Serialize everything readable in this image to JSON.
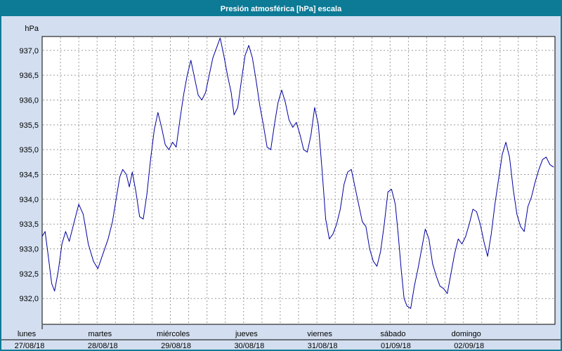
{
  "window": {
    "title": "Presión atmosférica [hPa] escala"
  },
  "colors": {
    "titlebar": "#0d7a96",
    "window_border": "#0d7a96",
    "background": "#d3dff0",
    "plot_background": "#ffffff",
    "plot_border": "#000000",
    "grid": "#9b9b9b",
    "line": "#0000a0",
    "text": "#000000",
    "title_text": "#ffffff"
  },
  "chart_data": {
    "type": "line",
    "title": "Presión atmosférica [hPa] escala",
    "ylabel": "hPa",
    "ylim": [
      931.48,
      937.28
    ],
    "yticks": [
      932.0,
      932.5,
      933.0,
      933.5,
      934.0,
      934.5,
      935.0,
      935.5,
      936.0,
      936.5,
      937.0
    ],
    "ytick_labels": [
      "932,0",
      "932,5",
      "933,0",
      "933,5",
      "934,0",
      "934,5",
      "935,0",
      "935,5",
      "936,0",
      "936,5",
      "937,0"
    ],
    "x_range_days": [
      0,
      7
    ],
    "vertical_gridlines_per_day": 4,
    "grid_style": "dashed",
    "legend_position": "none",
    "days": [
      {
        "name": "lunes",
        "date": "27/08/18"
      },
      {
        "name": "martes",
        "date": "28/08/18"
      },
      {
        "name": "miércoles",
        "date": "29/08/18"
      },
      {
        "name": "jueves",
        "date": "30/08/18"
      },
      {
        "name": "viernes",
        "date": "31/08/18"
      },
      {
        "name": "sábado",
        "date": "01/09/18"
      },
      {
        "name": "domingo",
        "date": "02/09/18"
      }
    ],
    "series": [
      {
        "name": "Presión atmosférica",
        "unit": "hPa",
        "points": [
          [
            0.0,
            933.25
          ],
          [
            0.04,
            933.35
          ],
          [
            0.08,
            932.9
          ],
          [
            0.13,
            932.3
          ],
          [
            0.17,
            932.15
          ],
          [
            0.22,
            932.55
          ],
          [
            0.27,
            933.1
          ],
          [
            0.32,
            933.35
          ],
          [
            0.37,
            933.15
          ],
          [
            0.43,
            933.5
          ],
          [
            0.5,
            933.9
          ],
          [
            0.56,
            933.7
          ],
          [
            0.63,
            933.1
          ],
          [
            0.7,
            932.75
          ],
          [
            0.76,
            932.6
          ],
          [
            0.83,
            932.9
          ],
          [
            0.9,
            933.2
          ],
          [
            0.96,
            933.55
          ],
          [
            1.02,
            934.1
          ],
          [
            1.06,
            934.45
          ],
          [
            1.1,
            934.6
          ],
          [
            1.15,
            934.5
          ],
          [
            1.19,
            934.25
          ],
          [
            1.23,
            934.55
          ],
          [
            1.28,
            934.15
          ],
          [
            1.33,
            933.65
          ],
          [
            1.38,
            933.6
          ],
          [
            1.43,
            934.1
          ],
          [
            1.48,
            934.8
          ],
          [
            1.53,
            935.4
          ],
          [
            1.58,
            935.75
          ],
          [
            1.63,
            935.45
          ],
          [
            1.68,
            935.1
          ],
          [
            1.73,
            935.0
          ],
          [
            1.78,
            935.15
          ],
          [
            1.83,
            935.05
          ],
          [
            1.88,
            935.6
          ],
          [
            1.93,
            936.1
          ],
          [
            1.98,
            936.5
          ],
          [
            2.03,
            936.8
          ],
          [
            2.08,
            936.45
          ],
          [
            2.13,
            936.1
          ],
          [
            2.18,
            936.0
          ],
          [
            2.23,
            936.15
          ],
          [
            2.28,
            936.5
          ],
          [
            2.33,
            936.85
          ],
          [
            2.38,
            937.05
          ],
          [
            2.43,
            937.25
          ],
          [
            2.48,
            936.9
          ],
          [
            2.53,
            936.5
          ],
          [
            2.58,
            936.15
          ],
          [
            2.62,
            935.7
          ],
          [
            2.67,
            935.85
          ],
          [
            2.72,
            936.4
          ],
          [
            2.77,
            936.9
          ],
          [
            2.82,
            937.1
          ],
          [
            2.87,
            936.85
          ],
          [
            2.92,
            936.4
          ],
          [
            2.97,
            935.9
          ],
          [
            3.02,
            935.5
          ],
          [
            3.07,
            935.05
          ],
          [
            3.12,
            935.0
          ],
          [
            3.17,
            935.5
          ],
          [
            3.22,
            935.95
          ],
          [
            3.27,
            936.2
          ],
          [
            3.32,
            935.95
          ],
          [
            3.37,
            935.6
          ],
          [
            3.42,
            935.45
          ],
          [
            3.47,
            935.55
          ],
          [
            3.52,
            935.3
          ],
          [
            3.57,
            935.0
          ],
          [
            3.62,
            934.95
          ],
          [
            3.67,
            935.3
          ],
          [
            3.72,
            935.85
          ],
          [
            3.77,
            935.5
          ],
          [
            3.82,
            934.6
          ],
          [
            3.87,
            933.6
          ],
          [
            3.92,
            933.2
          ],
          [
            3.97,
            933.3
          ],
          [
            4.02,
            933.5
          ],
          [
            4.07,
            933.8
          ],
          [
            4.12,
            934.3
          ],
          [
            4.17,
            934.55
          ],
          [
            4.22,
            934.6
          ],
          [
            4.27,
            934.25
          ],
          [
            4.32,
            933.9
          ],
          [
            4.37,
            933.55
          ],
          [
            4.42,
            933.45
          ],
          [
            4.47,
            933.0
          ],
          [
            4.52,
            932.75
          ],
          [
            4.57,
            932.65
          ],
          [
            4.62,
            932.95
          ],
          [
            4.67,
            933.5
          ],
          [
            4.72,
            934.15
          ],
          [
            4.77,
            934.2
          ],
          [
            4.82,
            933.9
          ],
          [
            4.86,
            933.3
          ],
          [
            4.9,
            932.6
          ],
          [
            4.94,
            932.0
          ],
          [
            4.98,
            931.85
          ],
          [
            5.03,
            931.8
          ],
          [
            5.08,
            932.25
          ],
          [
            5.13,
            932.6
          ],
          [
            5.18,
            933.0
          ],
          [
            5.23,
            933.4
          ],
          [
            5.28,
            933.2
          ],
          [
            5.33,
            932.7
          ],
          [
            5.38,
            932.45
          ],
          [
            5.43,
            932.25
          ],
          [
            5.48,
            932.2
          ],
          [
            5.53,
            932.1
          ],
          [
            5.58,
            932.5
          ],
          [
            5.63,
            932.9
          ],
          [
            5.68,
            933.2
          ],
          [
            5.73,
            933.1
          ],
          [
            5.78,
            933.25
          ],
          [
            5.83,
            933.5
          ],
          [
            5.88,
            933.8
          ],
          [
            5.93,
            933.75
          ],
          [
            5.98,
            933.5
          ],
          [
            6.03,
            933.15
          ],
          [
            6.08,
            932.85
          ],
          [
            6.13,
            933.3
          ],
          [
            6.18,
            933.9
          ],
          [
            6.23,
            934.4
          ],
          [
            6.28,
            934.9
          ],
          [
            6.33,
            935.15
          ],
          [
            6.38,
            934.85
          ],
          [
            6.43,
            934.2
          ],
          [
            6.48,
            933.7
          ],
          [
            6.53,
            933.45
          ],
          [
            6.58,
            933.35
          ],
          [
            6.63,
            933.85
          ],
          [
            6.68,
            934.05
          ],
          [
            6.73,
            934.35
          ],
          [
            6.78,
            934.6
          ],
          [
            6.83,
            934.8
          ],
          [
            6.88,
            934.85
          ],
          [
            6.93,
            934.7
          ],
          [
            6.98,
            934.65
          ]
        ]
      }
    ]
  }
}
